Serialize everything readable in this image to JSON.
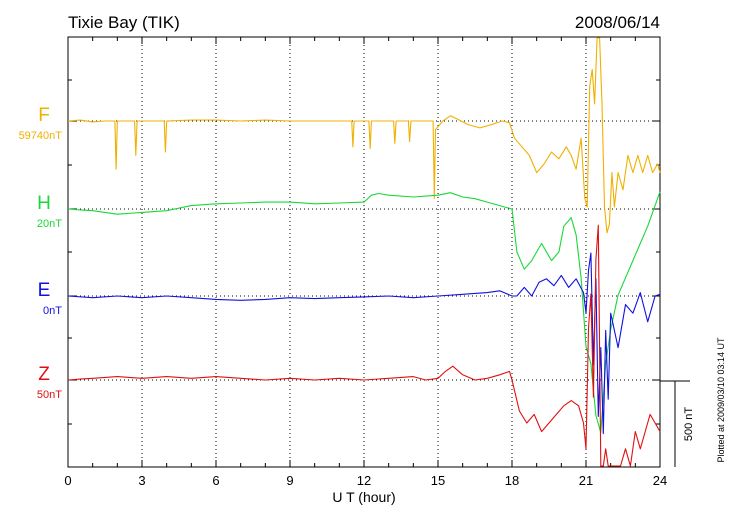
{
  "chart_data": {
    "type": "line",
    "title": "Tixie Bay (TIK)",
    "date": "2008/06/14",
    "xlabel": "U T (hour)",
    "xlim": [
      0,
      24
    ],
    "xticks": [
      0,
      3,
      6,
      9,
      12,
      15,
      18,
      21,
      24
    ],
    "grid": true,
    "scale_bar_label": "500 nT",
    "scale_bar_nT": 500,
    "plotted_note": "Plotted at 2009/03/10 03:14 UT",
    "series": [
      {
        "name": "F",
        "baseline_label": "59740nT",
        "baseline_nT": 59740,
        "color": "#f0b000",
        "x": [
          0,
          0.5,
          1,
          1.5,
          1.9,
          1.95,
          2.0,
          2.5,
          2.7,
          2.75,
          2.8,
          3.5,
          3.9,
          3.95,
          4.0,
          5,
          6,
          7,
          8,
          9,
          10,
          11,
          11.5,
          11.55,
          11.6,
          12.2,
          12.25,
          12.3,
          13,
          13.2,
          13.25,
          13.3,
          13.8,
          13.85,
          13.9,
          14.5,
          14.8,
          14.85,
          14.9,
          15.2,
          15.5,
          15.8,
          16.2,
          16.7,
          17.2,
          17.6,
          17.9,
          18.1,
          18.4,
          18.7,
          19.0,
          19.3,
          19.6,
          19.9,
          20.2,
          20.4,
          20.6,
          20.8,
          20.95,
          21.05,
          21.15,
          21.25,
          21.35,
          21.45,
          21.55,
          21.65,
          21.75,
          21.85,
          21.95,
          22.05,
          22.15,
          22.3,
          22.5,
          22.7,
          22.9,
          23.1,
          23.3,
          23.5,
          23.7,
          23.9,
          24
        ],
        "y": [
          0,
          5,
          -5,
          0,
          0,
          -280,
          0,
          0,
          0,
          -200,
          0,
          0,
          0,
          -180,
          0,
          5,
          5,
          0,
          5,
          0,
          0,
          0,
          0,
          -150,
          0,
          0,
          -160,
          0,
          0,
          0,
          -130,
          0,
          0,
          -120,
          0,
          0,
          0,
          -450,
          -50,
          0,
          30,
          10,
          -20,
          -40,
          -20,
          0,
          -10,
          -100,
          -150,
          -200,
          -300,
          -250,
          -180,
          -220,
          -150,
          -200,
          -280,
          -100,
          -450,
          -500,
          200,
          300,
          100,
          500,
          700,
          100,
          -500,
          -650,
          -600,
          -300,
          -500,
          -300,
          -400,
          -200,
          -300,
          -200,
          -300,
          -200,
          -300,
          -250,
          -300
        ]
      },
      {
        "name": "H",
        "baseline_label": "20nT",
        "baseline_nT": 20,
        "color": "#18d838",
        "x": [
          0,
          0.5,
          1,
          2,
          3,
          4,
          5,
          6,
          7,
          8,
          9,
          10,
          11,
          12,
          12.3,
          12.6,
          13,
          14,
          15,
          15.5,
          16,
          16.5,
          17,
          17.5,
          18.0,
          18.2,
          18.5,
          18.8,
          19.2,
          19.6,
          19.9,
          20.1,
          20.4,
          20.6,
          20.8,
          21.0,
          21.2,
          21.4,
          21.6,
          21.8,
          22.0,
          22.3,
          22.6,
          22.9,
          23.2,
          23.5,
          23.8,
          24
        ],
        "y": [
          0,
          -5,
          -10,
          -30,
          -20,
          -10,
          20,
          30,
          35,
          40,
          40,
          30,
          35,
          40,
          80,
          90,
          80,
          70,
          80,
          95,
          70,
          60,
          40,
          20,
          0,
          -250,
          -350,
          -300,
          -200,
          -300,
          -250,
          -100,
          -50,
          -150,
          -400,
          -800,
          -900,
          -1200,
          -1300,
          -900,
          -700,
          -500,
          -400,
          -300,
          -200,
          -100,
          20,
          100
        ]
      },
      {
        "name": "E",
        "baseline_label": "0nT",
        "baseline_nT": 0,
        "color": "#1010e0",
        "x": [
          0,
          1,
          2,
          3,
          4,
          5,
          6,
          7,
          8,
          9,
          10,
          11,
          12,
          13,
          14,
          15,
          16,
          17,
          17.5,
          18.0,
          18.2,
          18.5,
          18.8,
          19.1,
          19.4,
          19.7,
          20.0,
          20.3,
          20.6,
          20.9,
          21.0,
          21.1,
          21.2,
          21.3,
          21.4,
          21.5,
          21.6,
          21.7,
          21.8,
          21.9,
          22.0,
          22.3,
          22.6,
          22.9,
          23.2,
          23.5,
          23.8,
          24
        ],
        "y": [
          0,
          -10,
          0,
          -10,
          0,
          -10,
          -20,
          -25,
          -20,
          -10,
          -15,
          -10,
          -5,
          0,
          -10,
          0,
          10,
          20,
          30,
          0,
          0,
          50,
          0,
          80,
          100,
          60,
          120,
          50,
          100,
          20,
          -100,
          150,
          250,
          -400,
          100,
          -700,
          -300,
          -800,
          -200,
          -600,
          -100,
          -300,
          -50,
          -100,
          20,
          -150,
          0,
          10
        ]
      },
      {
        "name": "Z",
        "baseline_label": "50nT",
        "baseline_nT": 50,
        "color": "#e01010",
        "x": [
          0,
          0.5,
          1,
          2,
          3,
          4,
          5,
          6,
          7,
          8,
          9,
          10,
          11,
          12,
          13,
          14,
          14.5,
          15.0,
          15.3,
          15.6,
          16.0,
          16.5,
          17.0,
          17.5,
          17.9,
          18.0,
          18.3,
          18.6,
          18.9,
          19.2,
          19.5,
          19.8,
          20.1,
          20.4,
          20.7,
          20.9,
          21.0,
          21.1,
          21.2,
          21.3,
          21.4,
          21.5,
          21.6,
          21.7,
          21.8,
          21.9,
          22.0,
          22.2,
          22.4,
          22.6,
          22.8,
          23.0,
          23.2,
          23.4,
          23.6,
          23.8,
          24
        ],
        "y": [
          0,
          5,
          10,
          20,
          10,
          20,
          10,
          20,
          10,
          0,
          10,
          0,
          10,
          0,
          10,
          20,
          0,
          10,
          50,
          80,
          30,
          0,
          10,
          30,
          50,
          0,
          -180,
          -250,
          -200,
          -300,
          -250,
          -200,
          -150,
          -120,
          -150,
          -250,
          -400,
          300,
          500,
          -100,
          700,
          900,
          -600,
          -700,
          -400,
          -800,
          -600,
          -500,
          -650,
          -400,
          -500,
          -300,
          -400,
          -300,
          -200,
          -250,
          -300
        ]
      }
    ]
  }
}
